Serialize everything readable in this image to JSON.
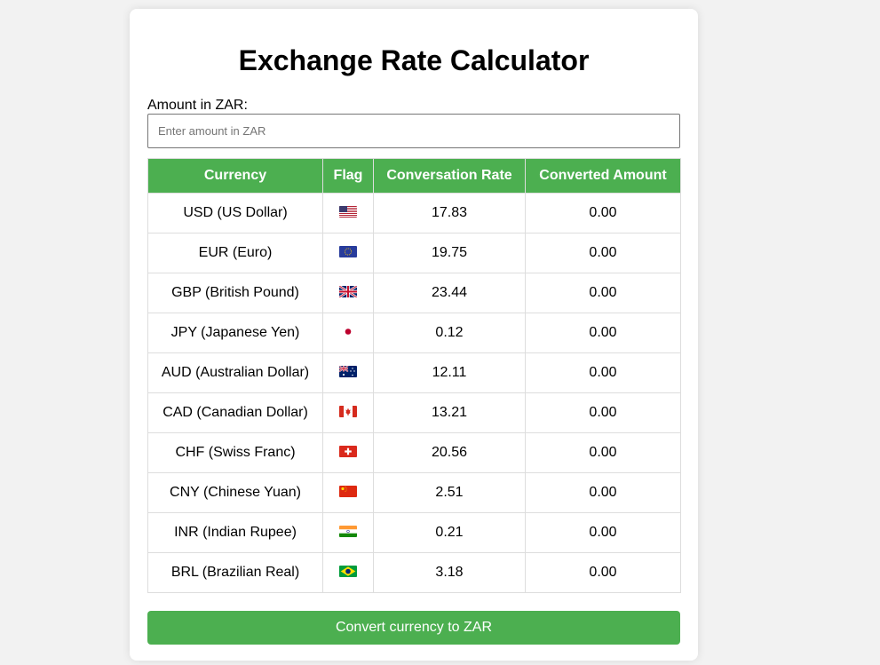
{
  "page": {
    "title": "Exchange Rate Calculator",
    "amount_label": "Amount in ZAR:",
    "amount_placeholder": "Enter amount in ZAR",
    "amount_value": "",
    "convert_button_label": "Convert currency to ZAR"
  },
  "table": {
    "headers": {
      "currency": "Currency",
      "flag": "Flag",
      "rate": "Conversation Rate",
      "converted": "Converted Amount"
    },
    "rows": [
      {
        "currency": "USD (US Dollar)",
        "flag": "us-flag-icon",
        "rate": "17.83",
        "converted": "0.00"
      },
      {
        "currency": "EUR (Euro)",
        "flag": "eu-flag-icon",
        "rate": "19.75",
        "converted": "0.00"
      },
      {
        "currency": "GBP (British Pound)",
        "flag": "gb-flag-icon",
        "rate": "23.44",
        "converted": "0.00"
      },
      {
        "currency": "JPY (Japanese Yen)",
        "flag": "jp-flag-icon",
        "rate": "0.12",
        "converted": "0.00"
      },
      {
        "currency": "AUD (Australian Dollar)",
        "flag": "au-flag-icon",
        "rate": "12.11",
        "converted": "0.00"
      },
      {
        "currency": "CAD (Canadian Dollar)",
        "flag": "ca-flag-icon",
        "rate": "13.21",
        "converted": "0.00"
      },
      {
        "currency": "CHF (Swiss Franc)",
        "flag": "ch-flag-icon",
        "rate": "20.56",
        "converted": "0.00"
      },
      {
        "currency": "CNY (Chinese Yuan)",
        "flag": "cn-flag-icon",
        "rate": "2.51",
        "converted": "0.00"
      },
      {
        "currency": "INR (Indian Rupee)",
        "flag": "in-flag-icon",
        "rate": "0.21",
        "converted": "0.00"
      },
      {
        "currency": "BRL (Brazilian Real)",
        "flag": "br-flag-icon",
        "rate": "3.18",
        "converted": "0.00"
      }
    ]
  },
  "colors": {
    "accent": "#4caf50",
    "background": "#f2f2f2",
    "card": "#ffffff",
    "border": "#dddddd"
  }
}
